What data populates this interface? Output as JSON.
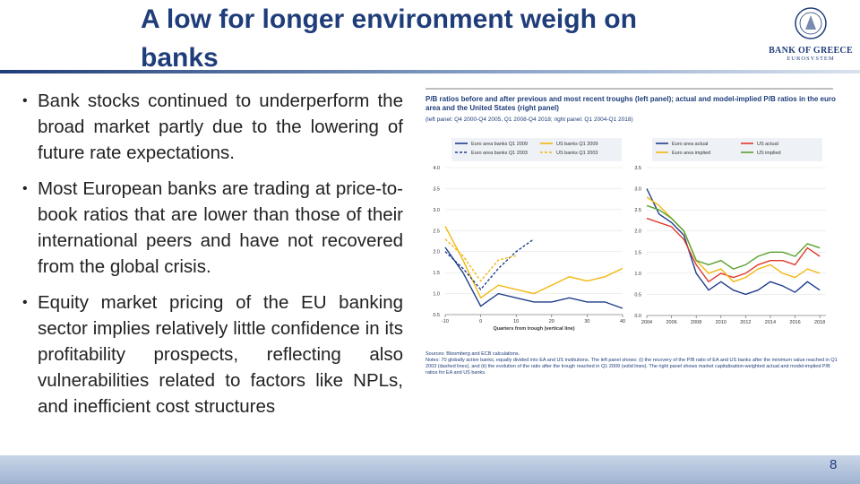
{
  "title": "A low for longer environment weigh on banks",
  "logo": {
    "name": "BANK OF GREECE",
    "sub": "EUROSYSTEM"
  },
  "bullets": [
    "Bank stocks continued to underperform the broad market partly due to the lowering of future rate expectations.",
    "Most European banks are trading at price-to-book ratios that are lower than those of their international peers and have not recovered from the global crisis.",
    "Equity market pricing of the EU banking sector implies relatively little confidence in its profitability prospects, reflecting also vulnerabilities related to factors like NPLs, and inefficient cost structures"
  ],
  "figure": {
    "title": "P/B ratios before and after previous and most recent troughs (left panel); actual and model-implied P/B ratios in the euro area and the United States (right panel)",
    "subtitle": "(left panel: Q4 2000-Q4 2005, Q1 2008-Q4 2018; right panel: Q1 2004-Q1 2018)",
    "sources": "Sources: Bloomberg and ECB calculations.",
    "notes": "Notes: 70 globally active banks, equally divided into EA and US institutions. The left panel shows: (i) the recovery of the P/B ratio of EA and US banks after the minimum value reached in Q1 2003 (dashed lines), and (ii) the evolution of the ratio after the trough reached in Q1 2009 (solid lines). The right panel shows market capitalisation-weighted actual and model-implied P/B ratios for EA and US banks."
  },
  "chart_data": [
    {
      "type": "line",
      "x_label": "Quarters from trough (vertical line)",
      "x": [
        -10,
        -5,
        0,
        5,
        10,
        15,
        20,
        25,
        30,
        35,
        40
      ],
      "xlim": [
        -10,
        40
      ],
      "xticks": [
        -10,
        0,
        10,
        20,
        30,
        40
      ],
      "ylim": [
        0.5,
        4.0
      ],
      "yticks": [
        0.5,
        {
          "value": 1.0,
          "label": "1.0"
        },
        1.5,
        {
          "value": 2.0,
          "label": "2.0"
        },
        2.5,
        {
          "value": 3.0,
          "label": "3.0"
        },
        3.5,
        {
          "value": 4.0,
          "label": "4.0"
        }
      ],
      "grid": true,
      "series": [
        {
          "name": "Euro area banks Q1 2009",
          "color": "#1f3d8a",
          "dashed": false,
          "values": [
            2.1,
            1.5,
            0.7,
            1.0,
            0.9,
            0.8,
            0.8,
            0.9,
            0.8,
            0.8,
            0.65
          ]
        },
        {
          "name": "US banks Q1 2009",
          "color": "#f2b70f",
          "dashed": false,
          "values": [
            2.6,
            1.8,
            0.9,
            1.2,
            1.1,
            1.0,
            1.2,
            1.4,
            1.3,
            1.4,
            1.6
          ]
        },
        {
          "name": "Euro area banks Q1 2003",
          "color": "#1f3d8a",
          "dashed": true,
          "values": [
            2.0,
            1.6,
            1.1,
            1.6,
            2.0,
            2.3,
            null,
            null,
            null,
            null,
            null
          ]
        },
        {
          "name": "US banks Q1 2003",
          "color": "#f2b70f",
          "dashed": true,
          "values": [
            2.3,
            1.9,
            1.3,
            1.8,
            1.9,
            null,
            null,
            null,
            null,
            null,
            null
          ]
        }
      ]
    },
    {
      "type": "line",
      "x": [
        2004,
        2005,
        2006,
        2007,
        2008,
        2009,
        2010,
        2011,
        2012,
        2013,
        2014,
        2015,
        2016,
        2017,
        2018
      ],
      "xlim": [
        2004,
        2018.5
      ],
      "xticks": [
        2004,
        2006,
        2008,
        2010,
        2012,
        2014,
        2016,
        2018
      ],
      "ylim": [
        0,
        3.5
      ],
      "yticks": [
        {
          "value": 0,
          "label": "0.0"
        },
        0.5,
        {
          "value": 1,
          "label": "1.0"
        },
        1.5,
        {
          "value": 2,
          "label": "2.0"
        },
        2.5,
        {
          "value": 3,
          "label": "3.0"
        },
        3.5
      ],
      "grid": true,
      "series": [
        {
          "name": "Euro area actual",
          "color": "#1f3d8a",
          "dashed": false,
          "values": [
            3.0,
            2.4,
            2.2,
            1.9,
            1.0,
            0.6,
            0.8,
            0.6,
            0.5,
            0.6,
            0.8,
            0.7,
            0.55,
            0.8,
            0.6
          ]
        },
        {
          "name": "US actual",
          "color": "#e03a2e",
          "dashed": false,
          "values": [
            2.3,
            2.2,
            2.1,
            1.8,
            1.2,
            0.8,
            1.0,
            0.9,
            1.0,
            1.2,
            1.3,
            1.3,
            1.2,
            1.6,
            1.4
          ]
        },
        {
          "name": "Euro area implied",
          "color": "#f2b70f",
          "dashed": false,
          "values": [
            2.8,
            2.6,
            2.3,
            2.0,
            1.3,
            1.0,
            1.1,
            0.8,
            0.9,
            1.1,
            1.2,
            1.0,
            0.9,
            1.1,
            1.0
          ]
        },
        {
          "name": "US implied",
          "color": "#5aa02c",
          "dashed": false,
          "values": [
            2.6,
            2.5,
            2.3,
            2.0,
            1.3,
            1.2,
            1.3,
            1.1,
            1.2,
            1.4,
            1.5,
            1.5,
            1.4,
            1.7,
            1.6
          ]
        }
      ]
    }
  ],
  "page_number": "8"
}
